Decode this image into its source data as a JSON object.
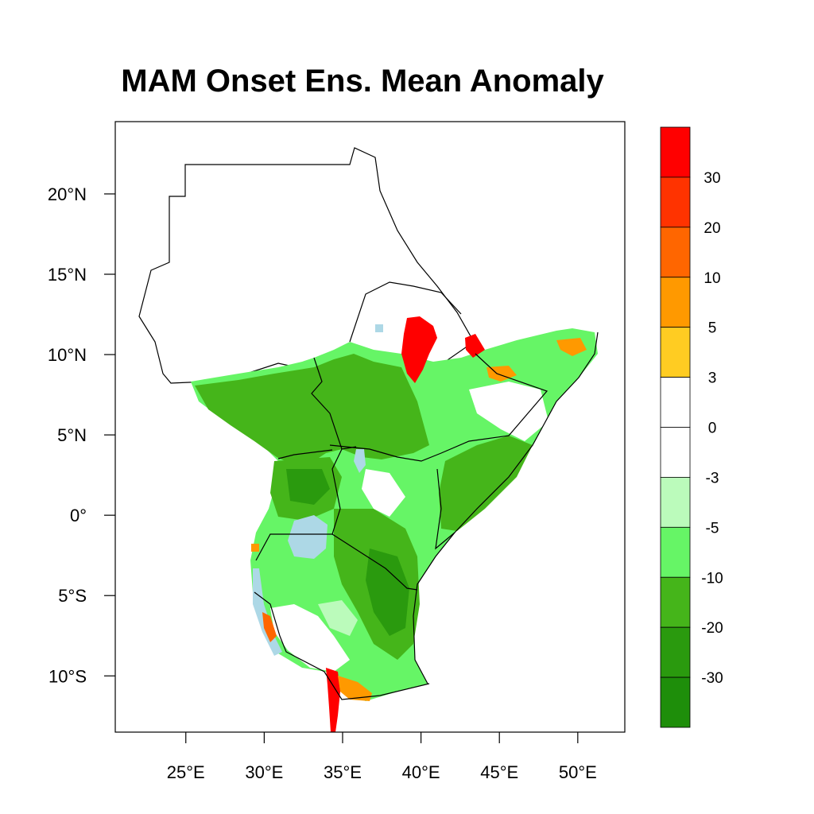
{
  "title": "MAM Onset Ens. Mean Anomaly",
  "map": {
    "lon_range": [
      20.5,
      53
    ],
    "lat_range": [
      -13.5,
      24.5
    ],
    "lon_ticks": [
      {
        "value": 25,
        "label": "25°E"
      },
      {
        "value": 30,
        "label": "30°E"
      },
      {
        "value": 35,
        "label": "35°E"
      },
      {
        "value": 40,
        "label": "40°E"
      },
      {
        "value": 45,
        "label": "45°E"
      },
      {
        "value": 50,
        "label": "50°E"
      }
    ],
    "lat_ticks": [
      {
        "value": 20,
        "label": "20°N"
      },
      {
        "value": 15,
        "label": "15°N"
      },
      {
        "value": 10,
        "label": "10°N"
      },
      {
        "value": 5,
        "label": "5°N"
      },
      {
        "value": 0,
        "label": "0°"
      },
      {
        "value": -5,
        "label": "5°S"
      },
      {
        "value": -10,
        "label": "10°S"
      }
    ]
  },
  "colorbar": {
    "orientation": "vertical",
    "labels": [
      "30",
      "20",
      "10",
      "5",
      "3",
      "0",
      "-3",
      "-5",
      "-10",
      "-20",
      "-30"
    ],
    "colors": [
      "#ff0000",
      "#ff3300",
      "#ff6600",
      "#ff9900",
      "#ffcc22",
      "#ffffff",
      "#ffffff",
      "#bbfbbb",
      "#66f566",
      "#45b51a",
      "#2a9a0e",
      "#1e8e0a"
    ]
  },
  "palette": {
    "water": "#add8e6",
    "border": "#000000"
  }
}
